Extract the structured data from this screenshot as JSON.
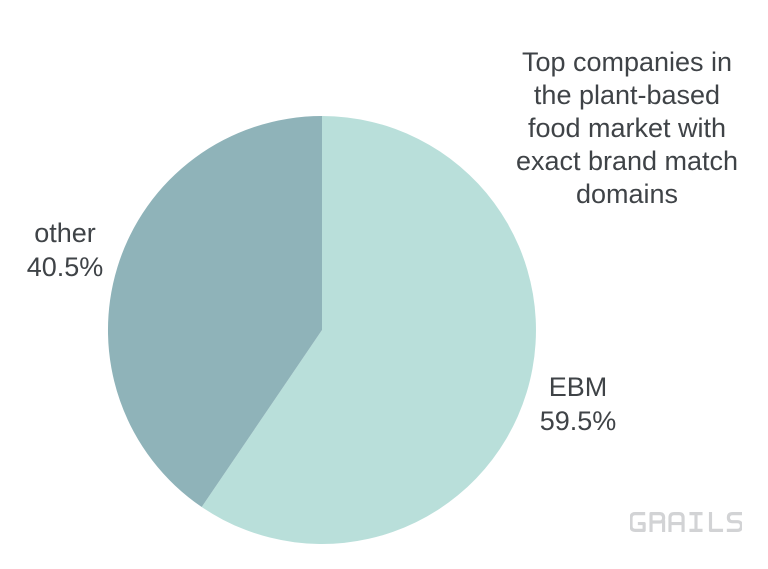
{
  "chart_data": {
    "type": "pie",
    "title": "Top companies in\nthe plant-based\nfood market with\nexact brand match\ndomains",
    "slices": [
      {
        "label": "EBM",
        "value": 59.5,
        "pct_label": "59.5%",
        "color": "#b9dfda"
      },
      {
        "label": "other",
        "value": 40.5,
        "pct_label": "40.5%",
        "color": "#8fb3b9"
      }
    ],
    "start_angle_deg": 0,
    "direction": "clockwise",
    "legend_position": "none",
    "label_style": "outside",
    "background": "#ffffff"
  },
  "watermark": {
    "text": "GRAILS",
    "color": "#d2d3d5"
  },
  "colors": {
    "background": "#ffffff",
    "text": "#3f4347"
  }
}
